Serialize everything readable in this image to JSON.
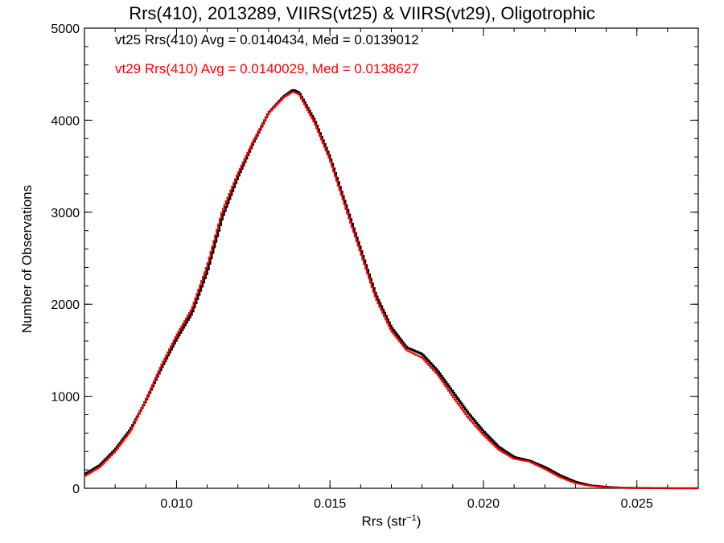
{
  "chart_data": {
    "type": "line",
    "step": true,
    "title": "Rrs(410), 2013289, VIIRS(vt25) & VIIRS(vt29), Oligotrophic",
    "xlabel_main": "Rrs (str",
    "xlabel_sup": "−1",
    "xlabel_close": ")",
    "ylabel": "Number of Observations",
    "xlim": [
      0.007,
      0.027
    ],
    "ylim": [
      0,
      5000
    ],
    "xticks": [
      0.01,
      0.015,
      0.02,
      0.025
    ],
    "xtick_labels": [
      "0.010",
      "0.015",
      "0.020",
      "0.025"
    ],
    "yticks": [
      0,
      1000,
      2000,
      3000,
      4000,
      5000
    ],
    "ytick_labels": [
      "0",
      "1000",
      "2000",
      "3000",
      "4000",
      "5000"
    ],
    "annotations": [
      "vt25 Rrs(410) Avg = 0.0140434, Med = 0.0139012",
      "vt29 Rrs(410) Avg = 0.0140029, Med = 0.0138627"
    ],
    "series": [
      {
        "color": "#000000",
        "points": [
          [
            0.007,
            150
          ],
          [
            0.0075,
            250
          ],
          [
            0.008,
            420
          ],
          [
            0.0085,
            640
          ],
          [
            0.009,
            950
          ],
          [
            0.0095,
            1300
          ],
          [
            0.01,
            1620
          ],
          [
            0.0105,
            1900
          ],
          [
            0.011,
            2350
          ],
          [
            0.0115,
            2950
          ],
          [
            0.012,
            3380
          ],
          [
            0.0125,
            3750
          ],
          [
            0.013,
            4080
          ],
          [
            0.0135,
            4260
          ],
          [
            0.0138,
            4330
          ],
          [
            0.014,
            4300
          ],
          [
            0.0145,
            4000
          ],
          [
            0.015,
            3600
          ],
          [
            0.0155,
            3100
          ],
          [
            0.016,
            2600
          ],
          [
            0.0165,
            2100
          ],
          [
            0.017,
            1750
          ],
          [
            0.0175,
            1530
          ],
          [
            0.018,
            1460
          ],
          [
            0.0185,
            1280
          ],
          [
            0.019,
            1050
          ],
          [
            0.0195,
            820
          ],
          [
            0.02,
            620
          ],
          [
            0.0205,
            450
          ],
          [
            0.021,
            340
          ],
          [
            0.0215,
            300
          ],
          [
            0.022,
            230
          ],
          [
            0.0225,
            140
          ],
          [
            0.023,
            70
          ],
          [
            0.0235,
            30
          ],
          [
            0.024,
            15
          ],
          [
            0.0245,
            6
          ],
          [
            0.025,
            3
          ],
          [
            0.026,
            1
          ],
          [
            0.027,
            0
          ]
        ]
      },
      {
        "color": "#ff0000",
        "points": [
          [
            0.007,
            130
          ],
          [
            0.0075,
            230
          ],
          [
            0.008,
            400
          ],
          [
            0.0085,
            620
          ],
          [
            0.009,
            960
          ],
          [
            0.0095,
            1330
          ],
          [
            0.01,
            1660
          ],
          [
            0.0105,
            1950
          ],
          [
            0.011,
            2420
          ],
          [
            0.0115,
            3020
          ],
          [
            0.012,
            3420
          ],
          [
            0.0125,
            3770
          ],
          [
            0.013,
            4080
          ],
          [
            0.0135,
            4250
          ],
          [
            0.0138,
            4310
          ],
          [
            0.014,
            4280
          ],
          [
            0.0145,
            3970
          ],
          [
            0.015,
            3570
          ],
          [
            0.0155,
            3060
          ],
          [
            0.016,
            2560
          ],
          [
            0.0165,
            2060
          ],
          [
            0.017,
            1710
          ],
          [
            0.0175,
            1500
          ],
          [
            0.018,
            1420
          ],
          [
            0.0185,
            1240
          ],
          [
            0.019,
            1000
          ],
          [
            0.0195,
            770
          ],
          [
            0.02,
            580
          ],
          [
            0.0205,
            420
          ],
          [
            0.021,
            320
          ],
          [
            0.0215,
            290
          ],
          [
            0.022,
            210
          ],
          [
            0.0225,
            120
          ],
          [
            0.023,
            55
          ],
          [
            0.0235,
            25
          ],
          [
            0.024,
            12
          ],
          [
            0.0245,
            5
          ],
          [
            0.025,
            2
          ],
          [
            0.026,
            1
          ],
          [
            0.027,
            0
          ]
        ]
      }
    ]
  }
}
